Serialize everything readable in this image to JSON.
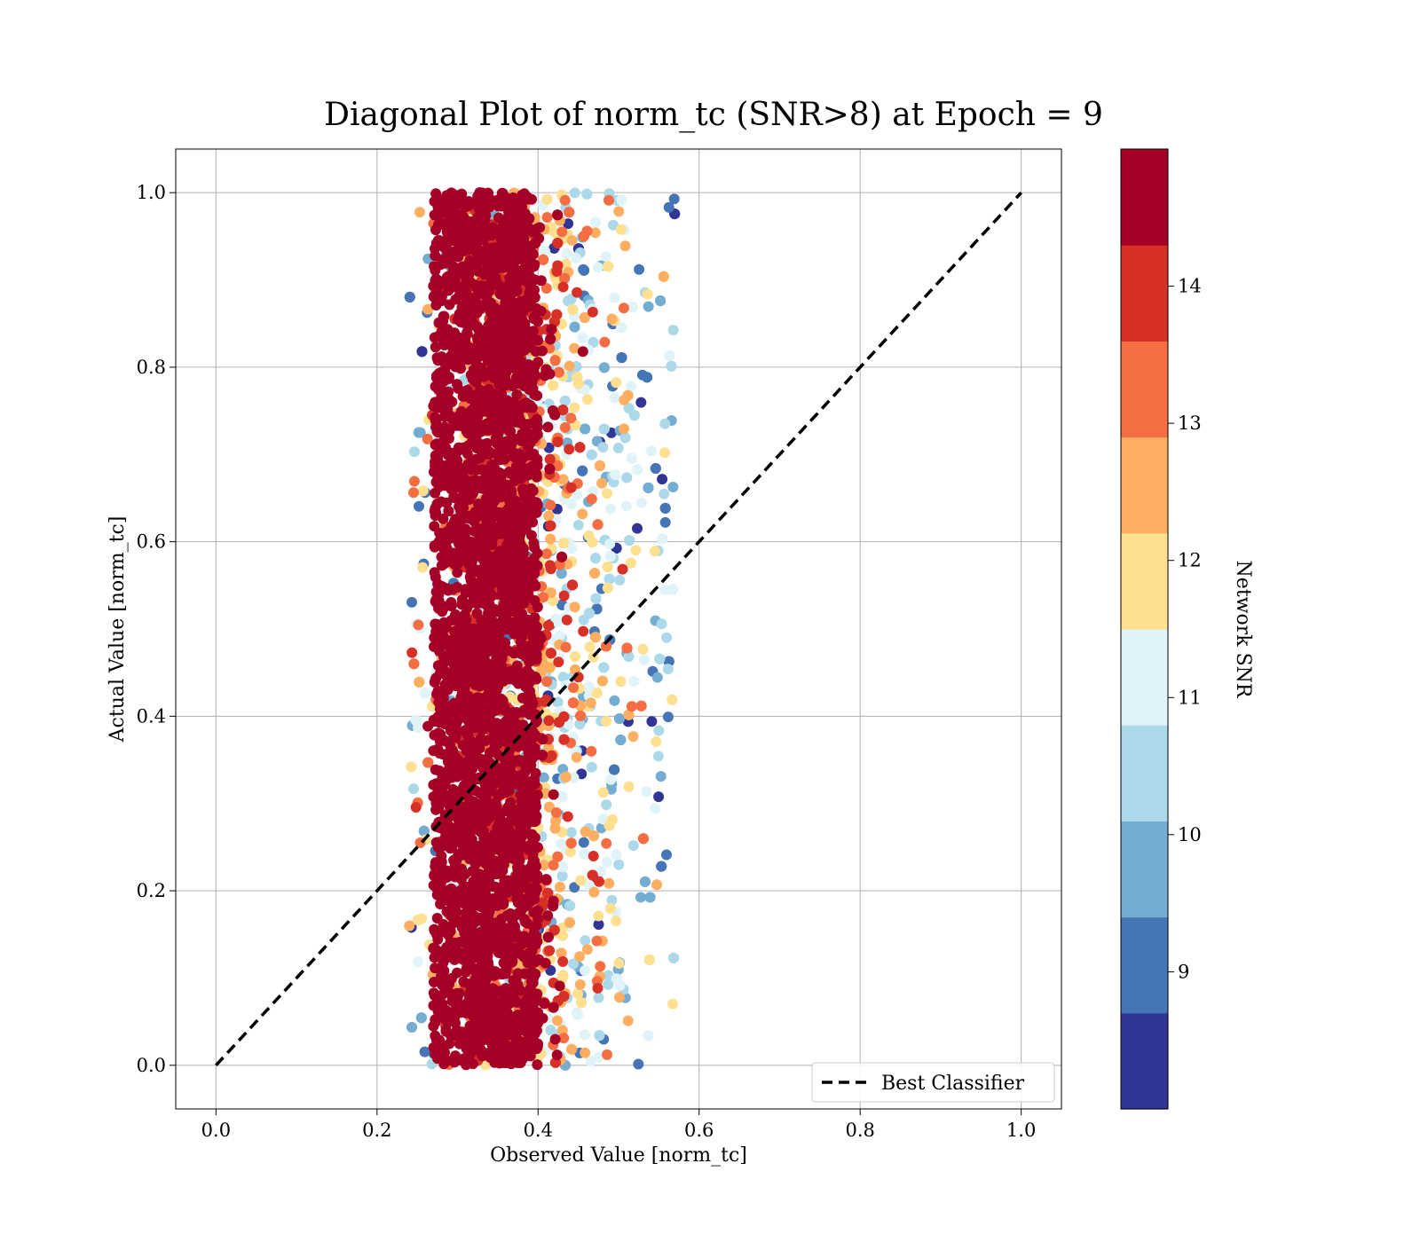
{
  "chart_data": {
    "type": "scatter",
    "title": "Diagonal Plot of norm_tc (SNR>8) at Epoch = 9",
    "xlabel": "Observed Value [norm_tc]",
    "ylabel": "Actual Value [norm_tc]",
    "xlim": [
      -0.05,
      1.05
    ],
    "ylim": [
      -0.05,
      1.05
    ],
    "xticks": [
      "0.0",
      "0.2",
      "0.4",
      "0.6",
      "0.8",
      "1.0"
    ],
    "yticks": [
      "0.0",
      "0.2",
      "0.4",
      "0.6",
      "0.8",
      "1.0"
    ],
    "grid": true,
    "scatter": {
      "x_range": [
        0.24,
        0.57
      ],
      "y_range": [
        0.0,
        1.0
      ],
      "x_center_high_snr": 0.33,
      "color_by": "Network SNR"
    },
    "reference_line": {
      "label": "Best Classifier",
      "style": "dashed",
      "color": "#000000",
      "x": [
        0.0,
        1.0
      ],
      "y": [
        0.0,
        1.0
      ]
    },
    "legend": {
      "placement": "lower-right",
      "entries": [
        "Best Classifier"
      ]
    },
    "colorbar": {
      "label": "Network SNR",
      "range": [
        8,
        15
      ],
      "ticks": [
        "9",
        "10",
        "11",
        "12",
        "13",
        "14"
      ],
      "colors": [
        "#313695",
        "#4575b4",
        "#74add1",
        "#abd9e9",
        "#e0f3f8",
        "#fee090",
        "#fdae61",
        "#f46d43",
        "#d73027",
        "#a50026"
      ]
    }
  }
}
